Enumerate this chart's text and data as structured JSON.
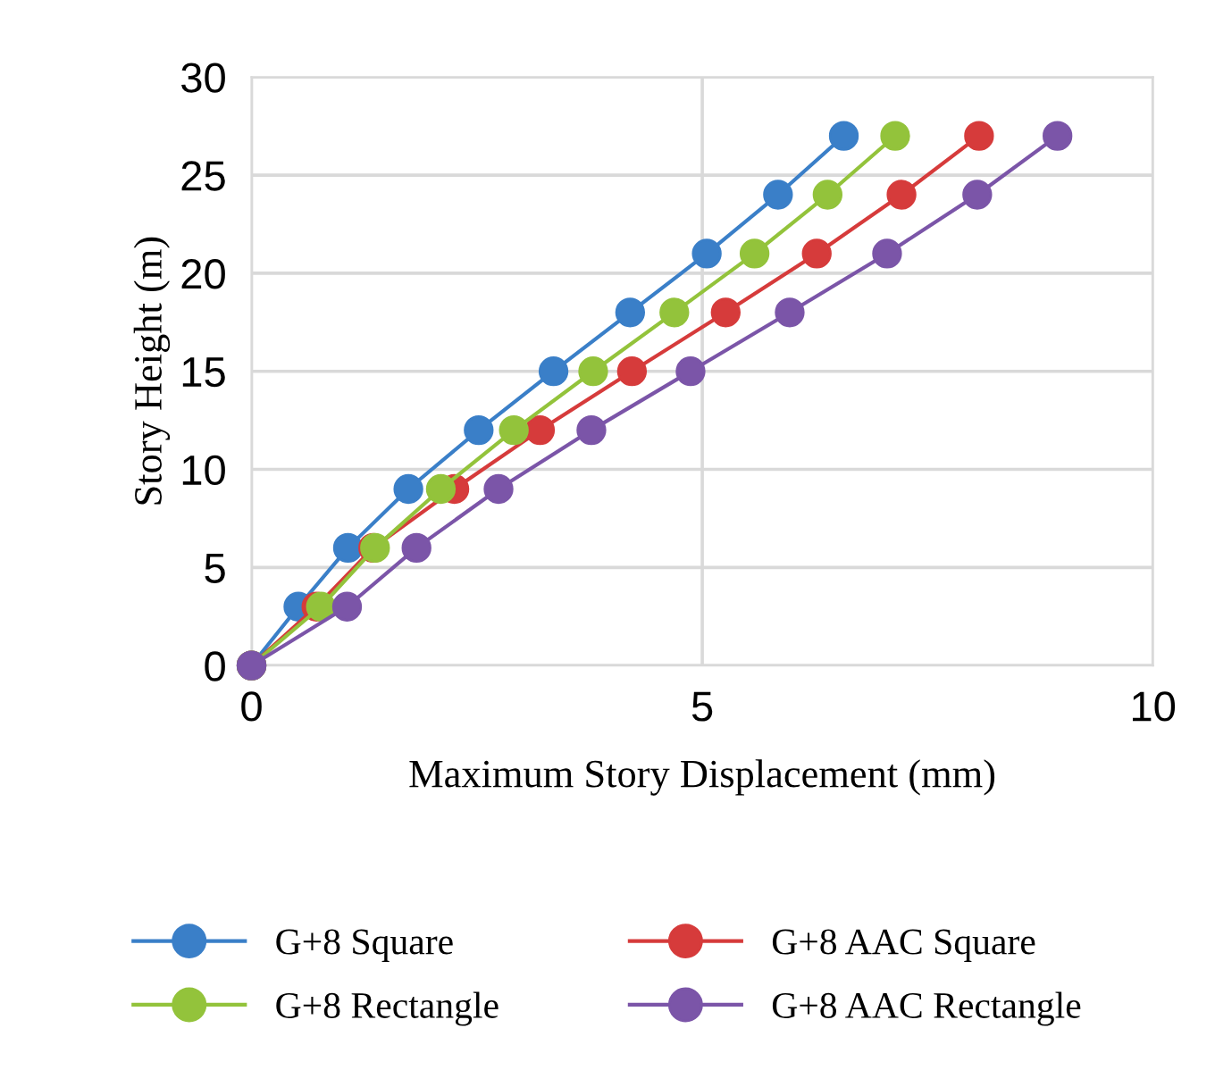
{
  "chart_data": {
    "type": "line",
    "xlabel": "Maximum Story Displacement (mm)",
    "ylabel": "Story Height (m)",
    "xlim": [
      0,
      10
    ],
    "xticks": [
      0,
      5,
      10
    ],
    "ylim": [
      0,
      30
    ],
    "yticks": [
      0,
      5,
      10,
      15,
      20,
      25,
      30
    ],
    "grid": true,
    "legend": "bottom",
    "marker": "circle",
    "line_style": "solid",
    "series": [
      {
        "name": "G+8 Square",
        "color": "#3a7fc8",
        "x": [
          0,
          0.52,
          1.07,
          1.74,
          2.52,
          3.35,
          4.2,
          5.05,
          5.84,
          6.57
        ],
        "values": [
          0,
          3,
          6,
          9,
          12,
          15,
          18,
          21,
          24,
          27
        ]
      },
      {
        "name": "G+8 AAC Square",
        "color": "#d63b3b",
        "x": [
          0,
          0.72,
          1.35,
          2.25,
          3.2,
          4.22,
          5.26,
          6.27,
          7.21,
          8.07
        ],
        "values": [
          0,
          3,
          6,
          9,
          12,
          15,
          18,
          21,
          24,
          27
        ]
      },
      {
        "name": "G+8 Rectangle",
        "color": "#93c33b",
        "x": [
          0,
          0.77,
          1.37,
          2.1,
          2.91,
          3.79,
          4.69,
          5.58,
          6.39,
          7.14
        ],
        "values": [
          0,
          3,
          6,
          9,
          12,
          15,
          18,
          21,
          24,
          27
        ]
      },
      {
        "name": "G+8 AAC Rectangle",
        "color": "#7b55a8",
        "x": [
          0,
          1.06,
          1.83,
          2.74,
          3.77,
          4.87,
          5.97,
          7.05,
          8.05,
          8.94
        ],
        "values": [
          0,
          3,
          6,
          9,
          12,
          15,
          18,
          21,
          24,
          27
        ]
      }
    ]
  }
}
